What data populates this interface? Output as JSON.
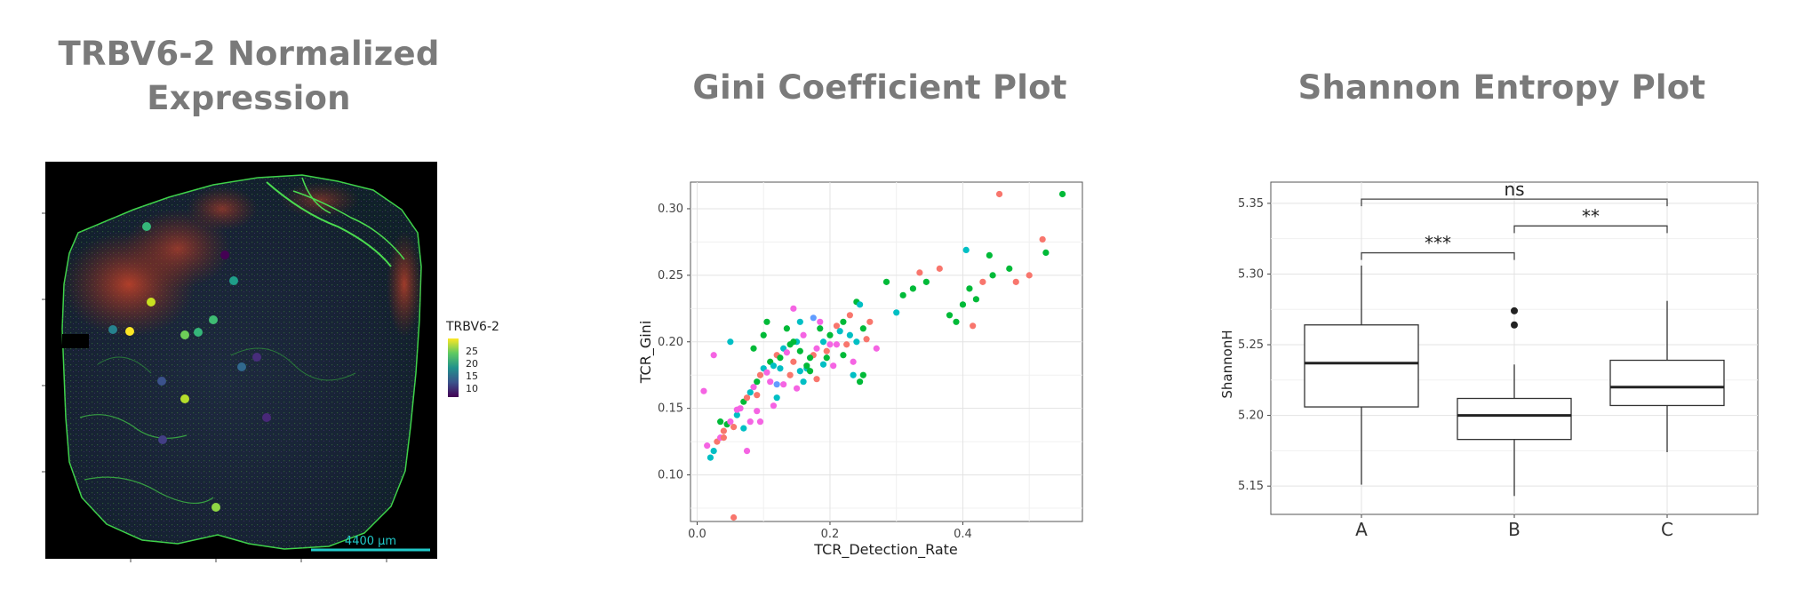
{
  "panels": {
    "expression": {
      "title_line1": "TRBV6-2 Normalized",
      "title_line2": "Expression",
      "legend_title": "TRBV6-2",
      "legend_ticks": [
        "25",
        "20",
        "15",
        "10"
      ],
      "scale_bar_label": "4400 µm",
      "spots": [
        {
          "v": 22,
          "c": "#35b779"
        },
        {
          "v": 26,
          "c": "#c8e020"
        },
        {
          "v": 27,
          "c": "#fde725"
        },
        {
          "v": 18,
          "c": "#26828e"
        },
        {
          "v": 22,
          "c": "#6ece58"
        },
        {
          "v": 21,
          "c": "#3fbc73"
        },
        {
          "v": 20,
          "c": "#1f9e89"
        },
        {
          "v": 20,
          "c": "#35b779"
        },
        {
          "v": 9,
          "c": "#440154"
        },
        {
          "v": 10,
          "c": "#472d7b"
        },
        {
          "v": 12,
          "c": "#3b528b"
        },
        {
          "v": 25,
          "c": "#b5de2b"
        },
        {
          "v": 11,
          "c": "#433e85"
        },
        {
          "v": 14,
          "c": "#31688e"
        },
        {
          "v": 9,
          "c": "#482878"
        },
        {
          "v": 24,
          "c": "#8fd744"
        }
      ]
    },
    "gini": {
      "title": "Gini Coefficient Plot"
    },
    "shannon": {
      "title": "Shannon Entropy Plot"
    }
  },
  "chart_data": [
    {
      "type": "scatter",
      "title": "Gini Coefficient Plot",
      "xlabel": "TCR_Detection_Rate",
      "ylabel": "TCR_Gini",
      "xlim": [
        -0.01,
        0.58
      ],
      "ylim": [
        0.065,
        0.32
      ],
      "xticks": [
        0.0,
        0.2,
        0.4
      ],
      "xtick_labels": [
        "0.0",
        "0.2",
        "0.4"
      ],
      "yticks": [
        0.1,
        0.15,
        0.2,
        0.25,
        0.3
      ],
      "ytick_labels": [
        "0.10",
        "0.15",
        "0.20",
        "0.25",
        "0.30"
      ],
      "grid": true,
      "colors": [
        "#f8766d",
        "#00ba38",
        "#00bfc4",
        "#f564e3",
        "#619cff"
      ],
      "points": [
        [
          0.015,
          0.122,
          3
        ],
        [
          0.02,
          0.113,
          2
        ],
        [
          0.025,
          0.118,
          2
        ],
        [
          0.03,
          0.125,
          0
        ],
        [
          0.035,
          0.128,
          3
        ],
        [
          0.04,
          0.133,
          0
        ],
        [
          0.045,
          0.138,
          1
        ],
        [
          0.05,
          0.14,
          3
        ],
        [
          0.055,
          0.136,
          0
        ],
        [
          0.06,
          0.145,
          2
        ],
        [
          0.065,
          0.15,
          3
        ],
        [
          0.07,
          0.155,
          1
        ],
        [
          0.075,
          0.158,
          0
        ],
        [
          0.08,
          0.162,
          2
        ],
        [
          0.085,
          0.166,
          3
        ],
        [
          0.09,
          0.17,
          1
        ],
        [
          0.095,
          0.175,
          0
        ],
        [
          0.1,
          0.18,
          2
        ],
        [
          0.105,
          0.177,
          3
        ],
        [
          0.11,
          0.185,
          1
        ],
        [
          0.115,
          0.182,
          2
        ],
        [
          0.12,
          0.19,
          0
        ],
        [
          0.125,
          0.188,
          1
        ],
        [
          0.13,
          0.195,
          2
        ],
        [
          0.135,
          0.192,
          3
        ],
        [
          0.14,
          0.198,
          1
        ],
        [
          0.145,
          0.185,
          0
        ],
        [
          0.15,
          0.2,
          2
        ],
        [
          0.155,
          0.193,
          1
        ],
        [
          0.16,
          0.205,
          3
        ],
        [
          0.165,
          0.18,
          2
        ],
        [
          0.17,
          0.178,
          1
        ],
        [
          0.175,
          0.19,
          0
        ],
        [
          0.18,
          0.195,
          3
        ],
        [
          0.185,
          0.21,
          1
        ],
        [
          0.19,
          0.2,
          2
        ],
        [
          0.195,
          0.193,
          0
        ],
        [
          0.2,
          0.205,
          1
        ],
        [
          0.21,
          0.198,
          3
        ],
        [
          0.22,
          0.215,
          1
        ],
        [
          0.23,
          0.22,
          0
        ],
        [
          0.24,
          0.2,
          2
        ],
        [
          0.25,
          0.21,
          1
        ],
        [
          0.26,
          0.215,
          0
        ],
        [
          0.285,
          0.245,
          1
        ],
        [
          0.3,
          0.222,
          2
        ],
        [
          0.31,
          0.235,
          1
        ],
        [
          0.325,
          0.24,
          1
        ],
        [
          0.335,
          0.252,
          0
        ],
        [
          0.345,
          0.245,
          1
        ],
        [
          0.365,
          0.255,
          0
        ],
        [
          0.38,
          0.22,
          1
        ],
        [
          0.39,
          0.215,
          1
        ],
        [
          0.4,
          0.228,
          1
        ],
        [
          0.41,
          0.24,
          1
        ],
        [
          0.415,
          0.212,
          0
        ],
        [
          0.42,
          0.232,
          1
        ],
        [
          0.43,
          0.245,
          0
        ],
        [
          0.44,
          0.265,
          1
        ],
        [
          0.445,
          0.25,
          1
        ],
        [
          0.455,
          0.311,
          0
        ],
        [
          0.47,
          0.255,
          1
        ],
        [
          0.48,
          0.245,
          0
        ],
        [
          0.5,
          0.25,
          0
        ],
        [
          0.52,
          0.277,
          0
        ],
        [
          0.525,
          0.267,
          1
        ],
        [
          0.55,
          0.311,
          1
        ],
        [
          0.405,
          0.269,
          2
        ],
        [
          0.01,
          0.163,
          3
        ],
        [
          0.025,
          0.19,
          3
        ],
        [
          0.055,
          0.068,
          0
        ],
        [
          0.04,
          0.128,
          0
        ],
        [
          0.06,
          0.149,
          3
        ],
        [
          0.07,
          0.135,
          2
        ],
        [
          0.08,
          0.14,
          3
        ],
        [
          0.09,
          0.16,
          0
        ],
        [
          0.1,
          0.205,
          1
        ],
        [
          0.11,
          0.17,
          3
        ],
        [
          0.12,
          0.158,
          2
        ],
        [
          0.13,
          0.168,
          3
        ],
        [
          0.14,
          0.175,
          0
        ],
        [
          0.15,
          0.165,
          3
        ],
        [
          0.16,
          0.17,
          2
        ],
        [
          0.17,
          0.188,
          1
        ],
        [
          0.18,
          0.172,
          0
        ],
        [
          0.19,
          0.183,
          2
        ],
        [
          0.2,
          0.198,
          3
        ],
        [
          0.21,
          0.212,
          0
        ],
        [
          0.22,
          0.19,
          1
        ],
        [
          0.23,
          0.205,
          2
        ],
        [
          0.24,
          0.23,
          1
        ],
        [
          0.25,
          0.175,
          1
        ],
        [
          0.255,
          0.202,
          0
        ],
        [
          0.27,
          0.195,
          3
        ],
        [
          0.245,
          0.17,
          1
        ],
        [
          0.05,
          0.2,
          2
        ],
        [
          0.075,
          0.118,
          3
        ],
        [
          0.085,
          0.195,
          1
        ],
        [
          0.095,
          0.14,
          3
        ],
        [
          0.105,
          0.215,
          1
        ],
        [
          0.115,
          0.152,
          3
        ],
        [
          0.125,
          0.18,
          2
        ],
        [
          0.135,
          0.21,
          1
        ],
        [
          0.145,
          0.225,
          3
        ],
        [
          0.155,
          0.178,
          2
        ],
        [
          0.165,
          0.182,
          1
        ],
        [
          0.175,
          0.218,
          4
        ],
        [
          0.185,
          0.215,
          3
        ],
        [
          0.195,
          0.188,
          1
        ],
        [
          0.205,
          0.182,
          3
        ],
        [
          0.215,
          0.208,
          2
        ],
        [
          0.225,
          0.198,
          0
        ],
        [
          0.235,
          0.185,
          3
        ],
        [
          0.245,
          0.228,
          2
        ],
        [
          0.235,
          0.175,
          2
        ],
        [
          0.155,
          0.215,
          2
        ],
        [
          0.12,
          0.168,
          4
        ],
        [
          0.09,
          0.148,
          3
        ],
        [
          0.145,
          0.2,
          1
        ],
        [
          0.035,
          0.14,
          1
        ]
      ]
    },
    {
      "type": "box",
      "title": "Shannon Entropy Plot",
      "xlabel": "",
      "ylabel": "ShannonH",
      "ylim": [
        5.13,
        5.365
      ],
      "yticks": [
        5.15,
        5.2,
        5.25,
        5.3,
        5.35
      ],
      "ytick_labels": [
        "5.15",
        "5.20",
        "5.25",
        "5.30",
        "5.35"
      ],
      "categories": [
        "A",
        "B",
        "C"
      ],
      "boxes": [
        {
          "min": 5.151,
          "q1": 5.206,
          "median": 5.237,
          "q3": 5.264,
          "max": 5.306,
          "outliers": []
        },
        {
          "min": 5.143,
          "q1": 5.183,
          "median": 5.2,
          "q3": 5.212,
          "max": 5.236,
          "outliers": [
            5.264,
            5.274
          ]
        },
        {
          "min": 5.174,
          "q1": 5.207,
          "median": 5.22,
          "q3": 5.239,
          "max": 5.281,
          "outliers": []
        }
      ],
      "comparisons": [
        {
          "from": "A",
          "to": "B",
          "label": "***",
          "y": 5.315
        },
        {
          "from": "B",
          "to": "C",
          "label": "**",
          "y": 5.334
        },
        {
          "from": "A",
          "to": "C",
          "label": "ns",
          "y": 5.353
        }
      ],
      "grid": true
    }
  ]
}
